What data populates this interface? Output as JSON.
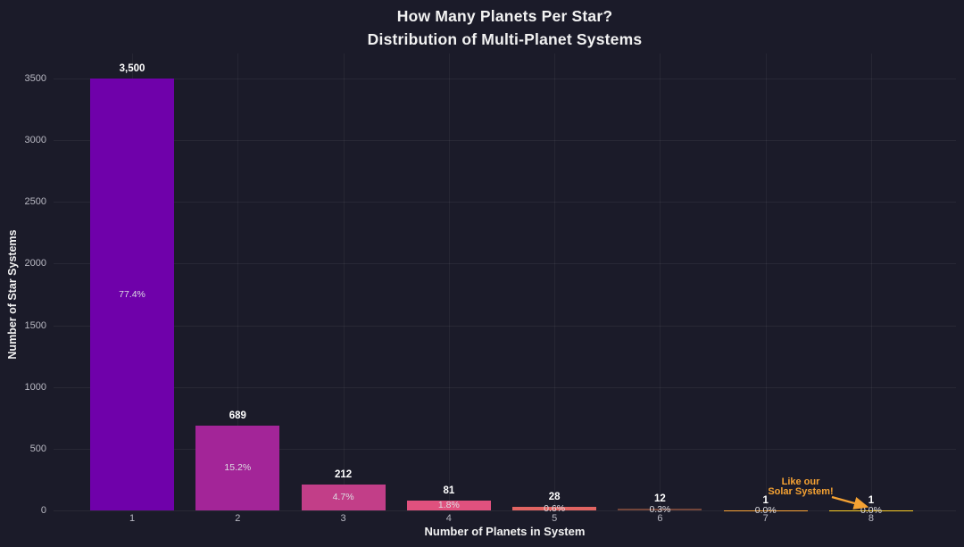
{
  "title": {
    "line1": "How Many Planets Per Star?",
    "line2": "Distribution of Multi-Planet Systems"
  },
  "colors": {
    "background": "#1b1b29",
    "grid": "rgba(255,255,255,0.06)",
    "title_text": "#f2f2f2",
    "tick_text": "#b9b9c3",
    "value_label_text": "#ffffff",
    "percent_label_text": "#dddde3",
    "annotation": "#f5a233"
  },
  "chart_data": {
    "type": "bar",
    "title": "How Many Planets Per Star?",
    "subtitle": "Distribution of Multi-Planet Systems",
    "xlabel": "Number of Planets in System",
    "ylabel": "Number of Star Systems",
    "categories": [
      "1",
      "2",
      "3",
      "4",
      "5",
      "6",
      "7",
      "8"
    ],
    "values": [
      3500,
      689,
      212,
      81,
      28,
      12,
      1,
      1
    ],
    "value_labels": [
      "3,500",
      "689",
      "212",
      "81",
      "28",
      "12",
      "1",
      "1"
    ],
    "pct_labels": [
      "77.4%",
      "15.2%",
      "4.7%",
      "1.8%",
      "0.6%",
      "0.3%",
      "0.0%",
      "0.0%"
    ],
    "bar_colors": [
      "#6f01aa",
      "#a32598",
      "#c23e88",
      "#e0517e",
      "#e16462",
      "#73453a",
      "#fca636",
      "#fcce25"
    ],
    "ylim": [
      0,
      3500
    ],
    "y_ticks": [
      0,
      500,
      1000,
      1500,
      2000,
      2500,
      3000,
      3500
    ],
    "grid": true,
    "legend": "none",
    "annotation": {
      "line1": "Like our",
      "line2": "Solar System!",
      "target_category": "8"
    }
  }
}
